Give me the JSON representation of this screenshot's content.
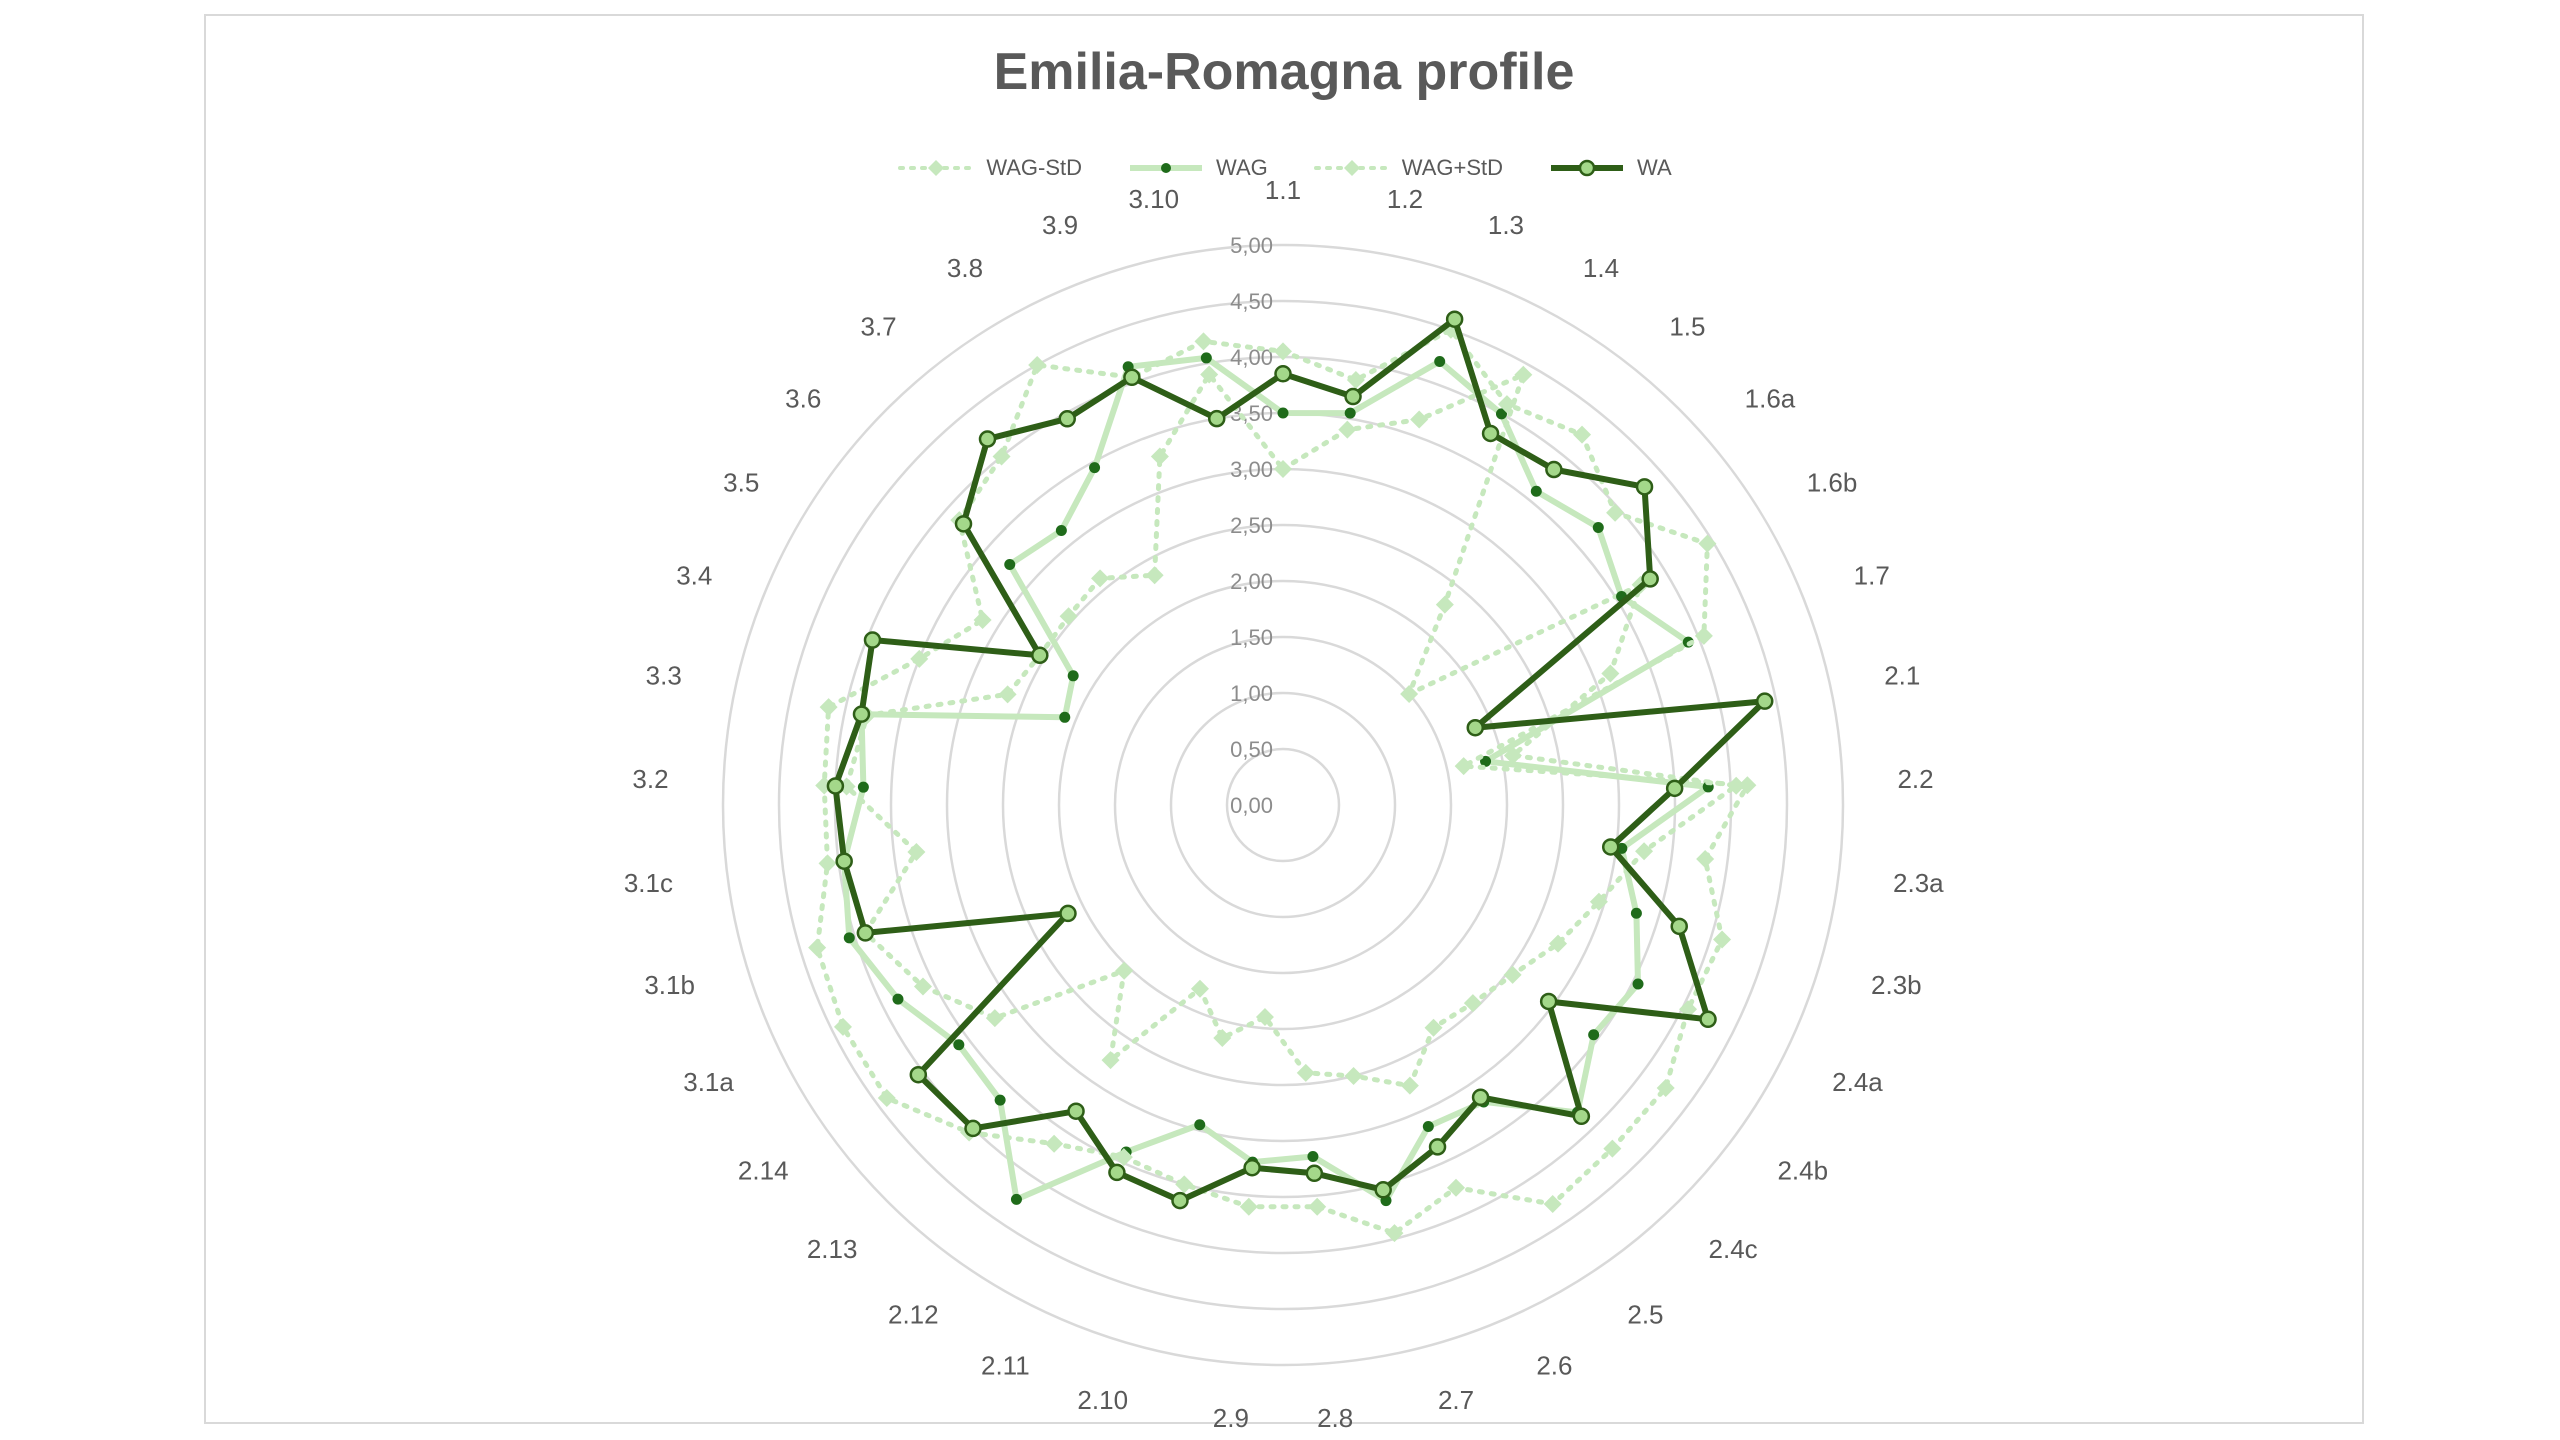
{
  "chart_data": {
    "type": "radar",
    "title": "Emilia-Romagna profile",
    "categories": [
      "1.1",
      "1.2",
      "1.3",
      "1.4",
      "1.5",
      "1.6a",
      "1.6b",
      "1.7",
      "2.1",
      "2.2",
      "2.3a",
      "2.3b",
      "2.4a",
      "2.4b",
      "2.4c",
      "2.5",
      "2.6",
      "2.7",
      "2.8",
      "2.9",
      "2.10",
      "2.11",
      "2.12",
      "2.13",
      "2.14",
      "3.1a",
      "3.1b",
      "3.1c",
      "3.2",
      "3.3",
      "3.4",
      "3.5",
      "3.6",
      "3.7",
      "3.8",
      "3.9",
      "3.10"
    ],
    "radial_ticks": [
      "0,00",
      "0,50",
      "1,00",
      "1,50",
      "2,00",
      "2,50",
      "3,00",
      "3,50",
      "4,00",
      "4,50",
      "5,00"
    ],
    "rlim": [
      0,
      5
    ],
    "grid": true,
    "legend_position": "top",
    "series": [
      {
        "name": "WAG-StD",
        "color": "#c6e8bd",
        "style": "dotted",
        "marker": "diamond",
        "values": [
          3.0,
          3.4,
          3.65,
          4.4,
          2.3,
          1.5,
          3.75,
          3.15,
          2.1,
          4.05,
          3.25,
          2.95,
          2.75,
          2.55,
          2.45,
          2.4,
          2.75,
          2.5,
          2.4,
          1.9,
          2.15,
          1.8,
          2.75,
          2.05,
          3.2,
          3.6,
          3.9,
          3.3,
          3.9,
          3.8,
          2.65,
          2.55,
          2.55,
          2.6,
          2.35,
          3.3,
          3.9
        ]
      },
      {
        "name": "WAG",
        "color": "#c6e8bd",
        "style": "solid",
        "marker": "dot",
        "values": [
          3.5,
          3.55,
          4.2,
          4.0,
          3.6,
          3.75,
          3.55,
          3.9,
          1.85,
          3.8,
          3.05,
          3.3,
          3.55,
          3.45,
          3.8,
          3.2,
          3.15,
          3.65,
          3.15,
          3.2,
          2.95,
          3.4,
          4.25,
          3.65,
          3.6,
          3.85,
          4.05,
          3.95,
          3.75,
          3.85,
          2.1,
          2.2,
          3.25,
          3.15,
          3.45,
          4.15,
          4.05
        ]
      },
      {
        "name": "WAG+StD",
        "color": "#c6e8bd",
        "style": "dotted",
        "marker": "diamond",
        "values": [
          4.05,
          3.85,
          4.5,
          4.1,
          4.25,
          3.95,
          4.45,
          4.05,
          1.65,
          4.15,
          3.8,
          4.1,
          4.05,
          4.25,
          4.25,
          4.3,
          3.75,
          3.95,
          3.6,
          3.6,
          3.5,
          3.45,
          3.65,
          4.05,
          4.4,
          4.4,
          4.35,
          4.1,
          4.1,
          4.15,
          3.5,
          3.15,
          3.85,
          4.0,
          4.5,
          4.05,
          4.2
        ]
      },
      {
        "name": "WA",
        "color": "#2e5e17",
        "style": "solid",
        "marker": "circle",
        "values": [
          3.85,
          3.7,
          4.6,
          3.8,
          3.85,
          4.3,
          3.85,
          1.85,
          4.4,
          3.5,
          2.95,
          3.7,
          4.25,
          2.95,
          3.85,
          3.15,
          3.35,
          3.55,
          3.3,
          3.25,
          3.65,
          3.6,
          3.3,
          4.0,
          4.05,
          2.15,
          3.9,
          3.95,
          4.0,
          3.85,
          3.95,
          2.55,
          3.8,
          4.2,
          3.95,
          4.05,
          3.5
        ]
      }
    ]
  }
}
